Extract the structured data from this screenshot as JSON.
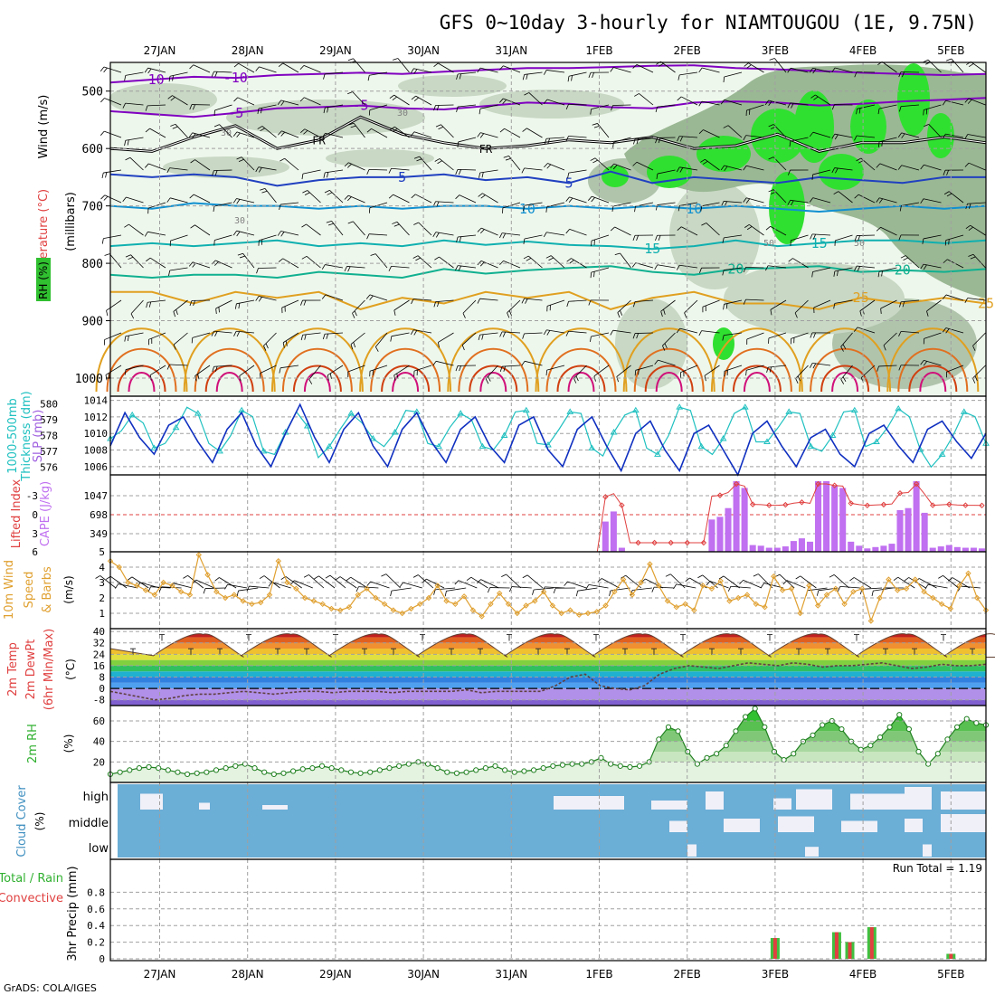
{
  "title": "GFS 0~10day 3-hourly for NIAMTOUGOU (1E, 9.75N)",
  "footer": "GrADS: COLA/IGES",
  "dates": [
    "27JAN",
    "28JAN",
    "29JAN",
    "30JAN",
    "31JAN",
    "1FEB",
    "2FEB",
    "3FEB",
    "4FEB",
    "5FEB"
  ],
  "chart_data": [
    {
      "type": "contour",
      "name": "upper-air",
      "ylabel_parts": [
        "RH (%)",
        "Temperature (°C)",
        "Wind (m/s)"
      ],
      "yunits": "(millibars)",
      "yticks": [
        500,
        600,
        700,
        800,
        900,
        1000
      ],
      "ylim": [
        450,
        1000
      ],
      "isotherms": [
        {
          "label": "-10",
          "color": "#8000c0",
          "p": [
            485,
            480,
            475,
            477,
            472,
            470,
            468,
            470,
            466,
            463,
            460,
            460,
            458,
            456,
            455,
            460,
            462,
            465,
            468,
            470,
            472,
            470
          ]
        },
        {
          "label": "-5",
          "color": "#8000c0",
          "p": [
            535,
            540,
            545,
            538,
            530,
            528,
            525,
            530,
            532,
            526,
            520,
            522,
            528,
            530,
            520,
            518,
            520,
            525,
            522,
            518,
            515,
            512
          ]
        },
        {
          "label": "FR",
          "color": "#000000",
          "p": [
            600,
            605,
            580,
            560,
            600,
            585,
            545,
            575,
            590,
            600,
            595,
            585,
            590,
            580,
            600,
            595,
            575,
            605,
            590,
            590,
            580,
            590
          ]
        },
        {
          "label": "5",
          "color": "#2040c0",
          "p": [
            645,
            650,
            645,
            650,
            665,
            655,
            650,
            650,
            645,
            655,
            650,
            660,
            640,
            660,
            650,
            655,
            660,
            650,
            655,
            660,
            650,
            650
          ]
        },
        {
          "label": "10",
          "color": "#1090d0",
          "p": [
            700,
            705,
            695,
            700,
            700,
            705,
            700,
            705,
            700,
            700,
            705,
            700,
            705,
            700,
            705,
            700,
            705,
            710,
            705,
            700,
            705,
            700
          ]
        },
        {
          "label": "15",
          "color": "#10b0b0",
          "p": [
            770,
            765,
            770,
            765,
            760,
            770,
            765,
            770,
            760,
            768,
            762,
            768,
            770,
            775,
            770,
            760,
            770,
            765,
            760,
            760,
            765,
            760
          ]
        },
        {
          "label": "20",
          "color": "#10b090",
          "p": [
            820,
            825,
            820,
            820,
            825,
            815,
            820,
            825,
            810,
            818,
            812,
            808,
            805,
            815,
            820,
            810,
            808,
            805,
            815,
            812,
            815,
            810
          ]
        },
        {
          "label": "25",
          "color": "#e0a020",
          "p": [
            850,
            850,
            870,
            850,
            860,
            850,
            880,
            860,
            870,
            850,
            860,
            850,
            880,
            860,
            850,
            870,
            870,
            880,
            860,
            870,
            860,
            870
          ]
        }
      ],
      "fr_label": "FR",
      "rh_labels": [
        "30",
        "30",
        "30",
        "50",
        "50"
      ]
    },
    {
      "type": "line",
      "name": "thickness-slp",
      "ylabel_left": [
        "1000-500mb",
        "Thickness (dm)"
      ],
      "ylabel_right": "SLP (mb)",
      "yticks_left": [
        576,
        577,
        578,
        579,
        580
      ],
      "yticks_right": [
        1006,
        1008,
        1010,
        1012,
        1014
      ],
      "ylim_left": [
        575.5,
        580.5
      ],
      "ylim_right": [
        1005,
        1014.5
      ],
      "series": [
        {
          "name": "thickness",
          "color": "#20c0c0",
          "values": [
            577.8,
            578.3,
            579.3,
            578.8,
            577.2,
            577.5,
            578.5,
            579.8,
            579.4,
            577.5,
            577.0,
            578.0,
            579.6,
            579.2,
            577.0,
            576.8,
            578.2,
            579.5,
            578.6,
            576.6,
            577.3,
            578.4,
            579.4,
            578.8,
            577.8,
            577.3,
            578.2,
            579.6,
            579.5,
            577.5,
            577.3,
            578.5,
            579.4,
            579.0,
            577.3,
            577.1,
            578.0,
            579.5,
            579.6,
            577.5,
            577.4,
            578.4,
            579.5,
            579.4,
            577.2,
            576.7,
            578.2,
            579.3,
            579.6,
            577.2,
            576.8,
            578.0,
            579.8,
            579.6,
            577.3,
            576.8,
            577.8,
            579.4,
            579.8,
            577.6,
            577.6,
            578.5,
            579.5,
            579.4,
            577.3,
            577.0,
            578.0,
            579.5,
            579.6,
            577.3,
            577.6,
            578.5,
            579.7,
            579.2,
            577.1,
            576.0,
            576.8,
            578.0,
            579.5,
            579.2,
            577.5
          ]
        },
        {
          "name": "slp",
          "color": "#1030c0",
          "values": [
            1008.5,
            1012.5,
            1009.5,
            1007.5,
            1011.0,
            1012.0,
            1009.0,
            1006.5,
            1010.5,
            1012.5,
            1008.5,
            1006.0,
            1010.0,
            1013.5,
            1009.5,
            1006.5,
            1010.5,
            1012.5,
            1008.5,
            1006.0,
            1010.5,
            1012.5,
            1009.0,
            1006.5,
            1010.5,
            1012.0,
            1008.5,
            1006.5,
            1011.0,
            1012.0,
            1008.0,
            1006.0,
            1010.5,
            1012.0,
            1008.5,
            1005.5,
            1010.0,
            1011.5,
            1008.0,
            1005.5,
            1010.0,
            1011.0,
            1008.0,
            1005.0,
            1010.0,
            1011.5,
            1008.5,
            1006.0,
            1009.5,
            1010.5,
            1007.5,
            1006.0,
            1010.0,
            1011.0,
            1008.5,
            1006.5,
            1010.5,
            1011.5,
            1009.0,
            1007.0,
            1010.0
          ]
        }
      ]
    },
    {
      "type": "bar",
      "name": "cape-li",
      "ylabel_left": "Lifted Index",
      "ylabel_right": "CAPE (J/kg)",
      "yticks_left": [
        "-3",
        "0",
        "3",
        "6"
      ],
      "yticks_right": [
        "1047",
        "698",
        "349"
      ],
      "cape_values": [
        0,
        0,
        0,
        0,
        0,
        0,
        0,
        0,
        0,
        0,
        0,
        0,
        0,
        0,
        0,
        0,
        0,
        0,
        0,
        0,
        0,
        0,
        0,
        0,
        0,
        0,
        0,
        0,
        0,
        0,
        0,
        0,
        0,
        0,
        0,
        0,
        0,
        0,
        0,
        0,
        0,
        0,
        0,
        0,
        0,
        0,
        0,
        0,
        0,
        0,
        0,
        0,
        0,
        0,
        0,
        0,
        0,
        0,
        0,
        0,
        450,
        600,
        60,
        0,
        0,
        0,
        0,
        0,
        0,
        0,
        0,
        0,
        0,
        480,
        520,
        650,
        1050,
        950,
        100,
        90,
        60,
        60,
        80,
        160,
        200,
        150,
        1050,
        1050,
        980,
        950,
        150,
        90,
        50,
        70,
        90,
        120,
        620,
        650,
        1050,
        580,
        60,
        80,
        100,
        70,
        60,
        60,
        50
      ]
    },
    {
      "type": "line",
      "name": "wind10m",
      "ylabel": [
        "10m Wind",
        "Speed",
        "& Barbs"
      ],
      "yunits": "(m/s)",
      "yticks": [
        1,
        2,
        3,
        4,
        5
      ],
      "ylim": [
        0,
        5
      ],
      "values": [
        4.4,
        4.0,
        3.0,
        2.8,
        2.5,
        2.2,
        3.0,
        2.8,
        2.4,
        2.2,
        4.8,
        3.5,
        2.4,
        2.0,
        2.2,
        1.8,
        1.6,
        1.7,
        2.2,
        4.4,
        3.0,
        2.6,
        2.0,
        1.8,
        1.6,
        1.3,
        1.2,
        1.4,
        2.2,
        2.6,
        2.0,
        1.6,
        1.2,
        1.0,
        1.3,
        1.6,
        2.0,
        2.8,
        1.8,
        1.6,
        2.1,
        1.2,
        0.8,
        1.6,
        2.3,
        1.6,
        1.0,
        1.5,
        1.8,
        2.4,
        1.5,
        1.0,
        1.2,
        0.9,
        1.0,
        1.1,
        1.5,
        2.4,
        3.2,
        2.2,
        3.0,
        4.2,
        2.8,
        1.8,
        1.4,
        1.6,
        1.2,
        2.8,
        2.6,
        3.1,
        1.8,
        2.0,
        2.2,
        1.6,
        1.4,
        3.4,
        2.5,
        2.6,
        1.0,
        2.8,
        1.5,
        2.2,
        2.6,
        1.6,
        2.4,
        2.6,
        0.5,
        2.0,
        3.2,
        2.5,
        2.6,
        3.2,
        2.4,
        2.0,
        1.6,
        1.3,
        2.8,
        3.6,
        2.0,
        1.2
      ]
    },
    {
      "type": "area",
      "name": "temp-dewpt",
      "ylabel": [
        "2m Temp",
        "2m DewPt",
        "(6hr Min/Max)"
      ],
      "yunits": "(°C)",
      "yticks": [
        -8,
        0,
        8,
        16,
        24,
        32,
        40
      ],
      "ylim": [
        -12,
        42
      ],
      "temp_max_days": [
        38,
        38,
        38,
        38,
        38,
        38,
        38,
        38,
        38,
        38
      ],
      "temp_min": 22,
      "dewpoint": [
        -2,
        -4,
        -6,
        -8,
        -7,
        -5,
        -4,
        -4,
        -3,
        -2,
        -3,
        -4,
        -3,
        -2,
        -2,
        -3,
        -2,
        -2,
        -2,
        -3,
        -2,
        -2,
        -2,
        -2,
        -1,
        -3,
        -2,
        -2,
        -2,
        -2,
        2,
        8,
        10,
        2,
        0,
        -1,
        2,
        10,
        14,
        16,
        15,
        14,
        16,
        18,
        17,
        16,
        18,
        17,
        15,
        16,
        16,
        17,
        18,
        16,
        14,
        15,
        17,
        16,
        16,
        17
      ]
    },
    {
      "type": "area",
      "name": "rh2m",
      "ylabel": "2m RH",
      "yunits": "(%)",
      "yticks": [
        20,
        40,
        60
      ],
      "ylim": [
        0,
        75
      ],
      "values": [
        8,
        10,
        12,
        14,
        15,
        14,
        12,
        10,
        8,
        9,
        10,
        12,
        14,
        16,
        18,
        14,
        10,
        8,
        9,
        11,
        13,
        14,
        16,
        14,
        12,
        10,
        9,
        10,
        12,
        14,
        16,
        18,
        20,
        18,
        14,
        10,
        9,
        10,
        12,
        14,
        16,
        12,
        10,
        11,
        12,
        14,
        16,
        17,
        18,
        18,
        20,
        24,
        18,
        16,
        15,
        16,
        20,
        42,
        54,
        50,
        30,
        18,
        24,
        28,
        36,
        50,
        64,
        72,
        54,
        30,
        22,
        28,
        40,
        46,
        56,
        60,
        52,
        40,
        32,
        36,
        44,
        54,
        66,
        52,
        30,
        18,
        28,
        42,
        54,
        62,
        58,
        56
      ]
    },
    {
      "type": "heatmap",
      "name": "cloud-cover",
      "ylabel": "Cloud Cover",
      "yunits": "(%)",
      "levels": [
        "high",
        "middle",
        "low"
      ],
      "base_color": "#6baed6",
      "cover_color": "#f0f0f8"
    },
    {
      "type": "bar",
      "name": "precip",
      "ylabel_left": [
        "Total / Rain",
        "Convective"
      ],
      "ylabel": "3hr Precip (mm)",
      "yticks": [
        0,
        0.2,
        0.4,
        0.6,
        0.8
      ],
      "ylim": [
        0,
        1
      ],
      "run_total_label": "Run Total = 1.19",
      "bars": [
        {
          "day": 7.0,
          "value": 0.25
        },
        {
          "day": 7.7,
          "value": 0.32
        },
        {
          "day": 7.85,
          "value": 0.2
        },
        {
          "day": 8.1,
          "value": 0.38
        },
        {
          "day": 9.0,
          "value": 0.06
        }
      ]
    }
  ],
  "colors": {
    "axis": "#000000",
    "grid": "#a0a0a0",
    "cape": "#c070f0",
    "li": "#e04040",
    "wind": "#e0a030",
    "rh_green": "#40c040",
    "thickness": "#20c0c0",
    "slp": "#1030c0",
    "precip_total": "#40c040",
    "precip_conv": "#e04040"
  }
}
